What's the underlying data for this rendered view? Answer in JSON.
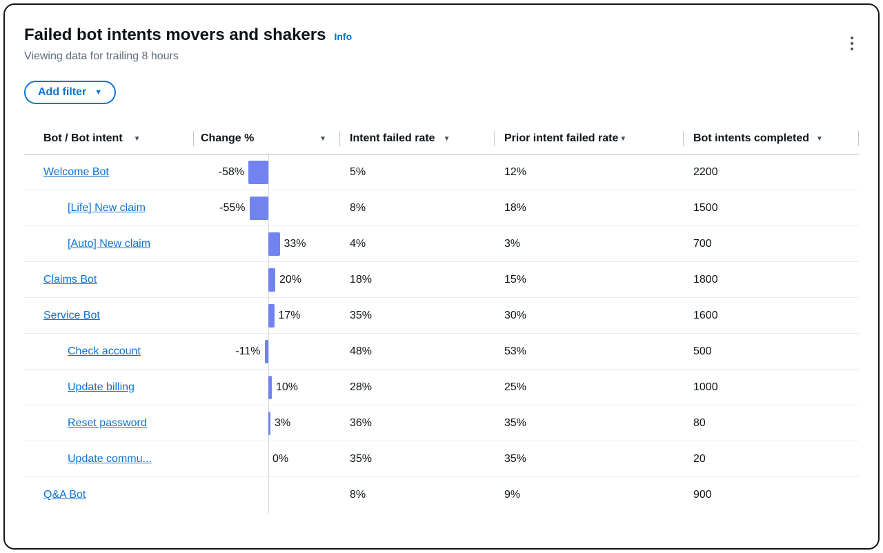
{
  "card": {
    "title": "Failed bot intents movers and shakers",
    "info_label": "Info",
    "subtitle": "Viewing data for trailing 8 hours"
  },
  "toolbar": {
    "add_filter_label": "Add filter",
    "caret_icon": "▼"
  },
  "table": {
    "sort_icon": "▼",
    "columns": [
      {
        "label": "Bot / Bot intent"
      },
      {
        "label": "Change %"
      },
      {
        "label": "Intent failed rate"
      },
      {
        "label": "Prior intent failed rate"
      },
      {
        "label": "Bot intents completed"
      }
    ],
    "rows": [
      {
        "name": "Welcome Bot",
        "indent": false,
        "change_pct": -58,
        "change_label": "-58%",
        "intent_failed_rate": "5%",
        "prior_intent_failed_rate": "12%",
        "bot_intents_completed": "2200"
      },
      {
        "name": "[Life] New claim",
        "indent": true,
        "change_pct": -55,
        "change_label": "-55%",
        "intent_failed_rate": "8%",
        "prior_intent_failed_rate": "18%",
        "bot_intents_completed": "1500"
      },
      {
        "name": "[Auto] New claim",
        "indent": true,
        "change_pct": 33,
        "change_label": "33%",
        "intent_failed_rate": "4%",
        "prior_intent_failed_rate": "3%",
        "bot_intents_completed": "700"
      },
      {
        "name": "Claims Bot",
        "indent": false,
        "change_pct": 20,
        "change_label": "20%",
        "intent_failed_rate": "18%",
        "prior_intent_failed_rate": "15%",
        "bot_intents_completed": "1800"
      },
      {
        "name": "Service Bot",
        "indent": false,
        "change_pct": 17,
        "change_label": "17%",
        "intent_failed_rate": "35%",
        "prior_intent_failed_rate": "30%",
        "bot_intents_completed": "1600"
      },
      {
        "name": "Check account",
        "indent": true,
        "change_pct": -11,
        "change_label": "-11%",
        "intent_failed_rate": "48%",
        "prior_intent_failed_rate": "53%",
        "bot_intents_completed": "500"
      },
      {
        "name": "Update billing",
        "indent": true,
        "change_pct": 10,
        "change_label": "10%",
        "intent_failed_rate": "28%",
        "prior_intent_failed_rate": "25%",
        "bot_intents_completed": "1000"
      },
      {
        "name": "Reset password",
        "indent": true,
        "change_pct": 3,
        "change_label": "3%",
        "intent_failed_rate": "36%",
        "prior_intent_failed_rate": "35%",
        "bot_intents_completed": "80"
      },
      {
        "name": "Update commu...",
        "indent": true,
        "change_pct": 0,
        "change_label": "0%",
        "intent_failed_rate": "35%",
        "prior_intent_failed_rate": "35%",
        "bot_intents_completed": "20"
      },
      {
        "name": "Q&A Bot",
        "indent": false,
        "change_pct": null,
        "change_label": "",
        "intent_failed_rate": "8%",
        "prior_intent_failed_rate": "9%",
        "bot_intents_completed": "900"
      }
    ]
  },
  "colors": {
    "bar": "#7283f0",
    "link": "#0972d3",
    "accent": "#0972d3"
  }
}
